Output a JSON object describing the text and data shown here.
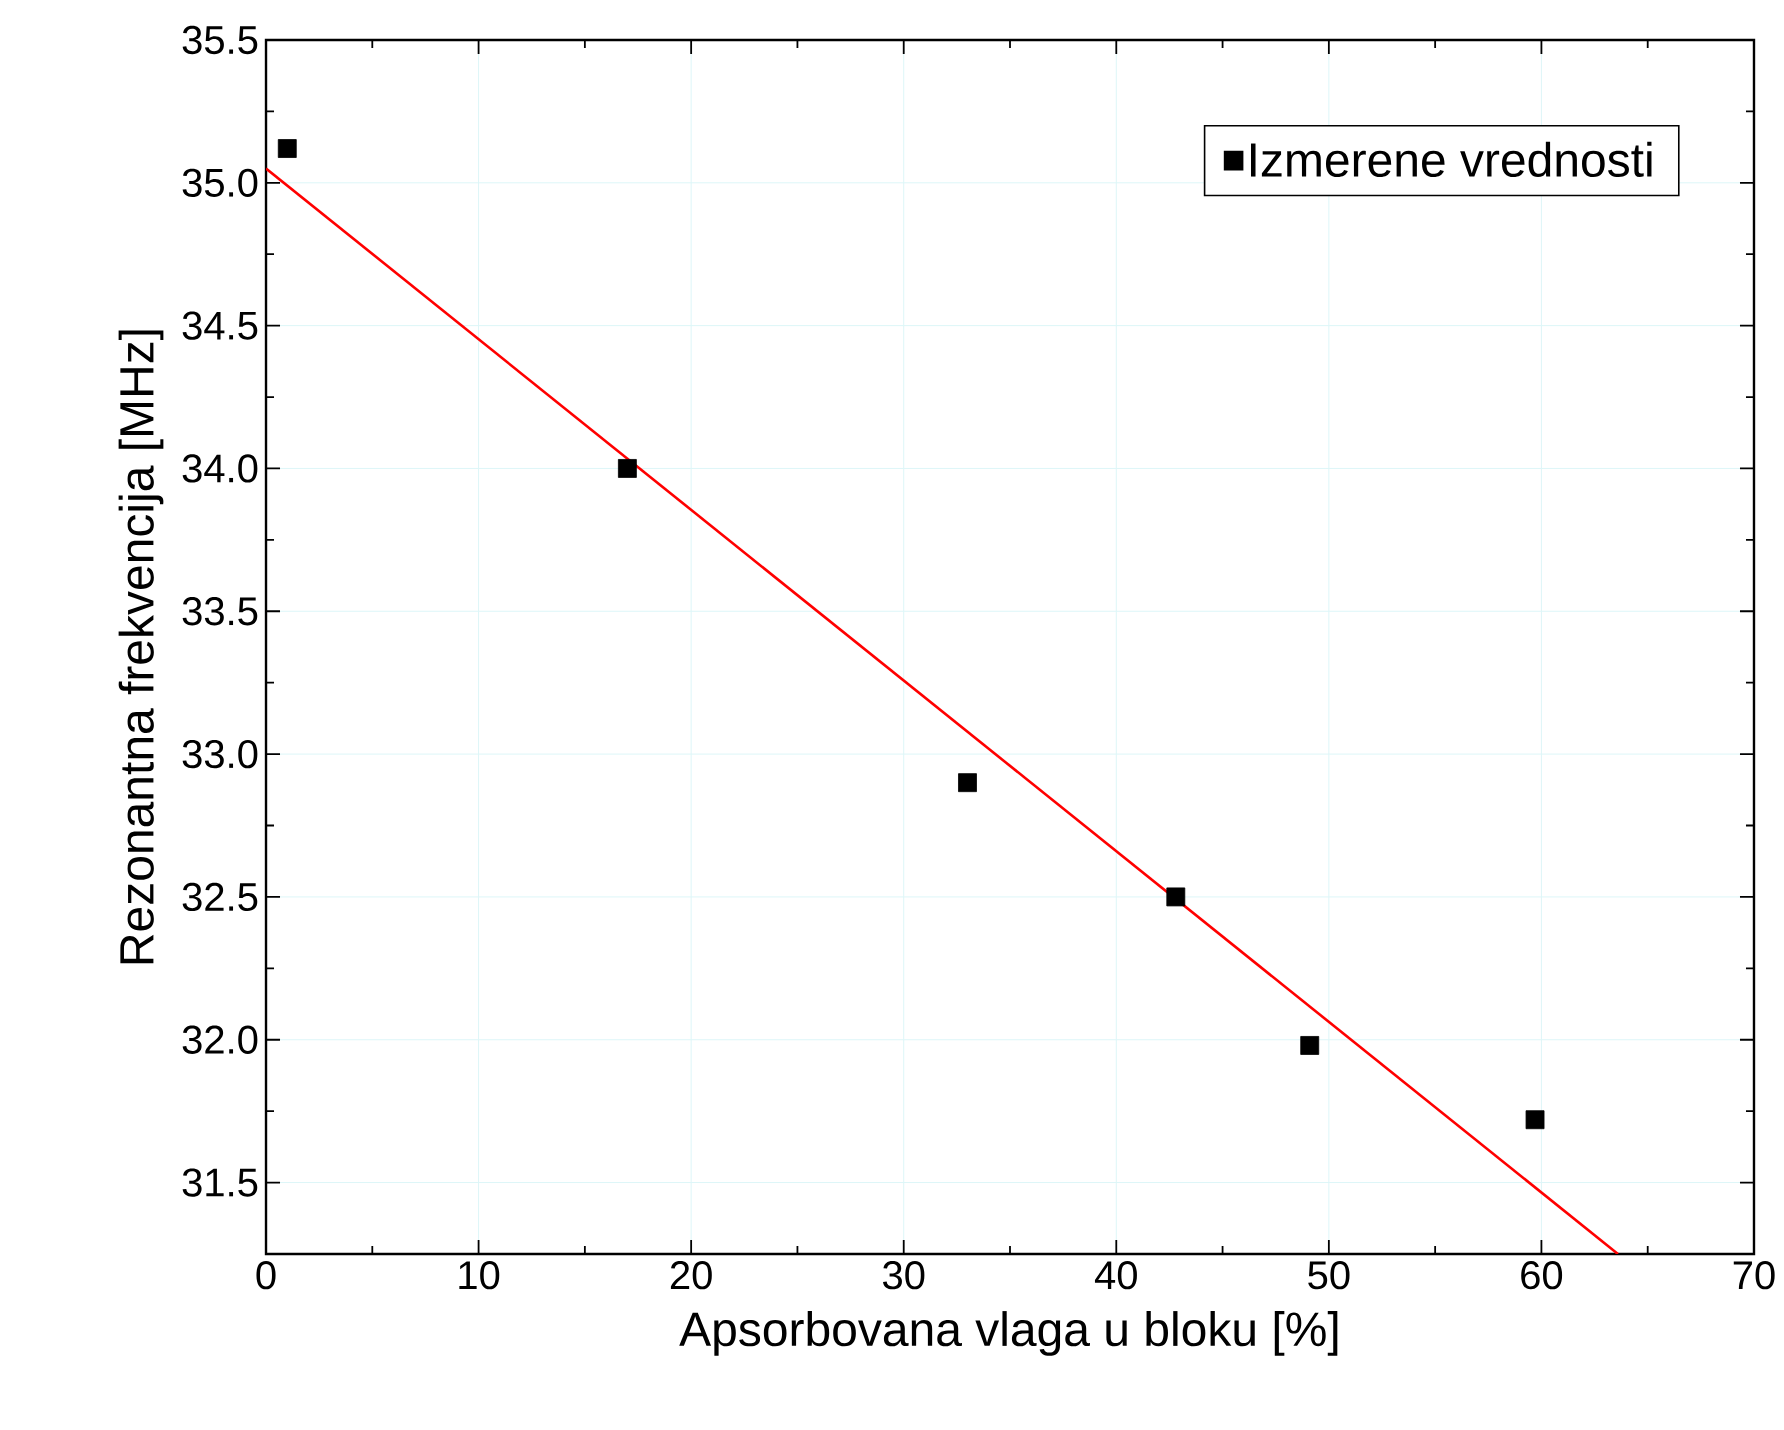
{
  "chart_data": {
    "type": "scatter",
    "xlabel": "Apsorbovana vlaga u bloku [%]",
    "ylabel": "Rezonantna frekvencija [MHz]",
    "xlim": [
      0,
      70
    ],
    "xticks": [
      0,
      10,
      20,
      30,
      40,
      50,
      60,
      70
    ],
    "ylim": [
      31.25,
      35.5
    ],
    "yticks": [
      {
        "value": 31.5,
        "label": "31.5"
      },
      {
        "value": 32,
        "label": "32.0"
      },
      {
        "value": 32.5,
        "label": "32.5"
      },
      {
        "value": 33,
        "label": "33.0"
      },
      {
        "value": 33.5,
        "label": "33.5"
      },
      {
        "value": 34,
        "label": "34.0"
      },
      {
        "value": 34.5,
        "label": "34.5"
      },
      {
        "value": 35,
        "label": "35.0"
      },
      {
        "value": 35.5,
        "label": "35.5"
      }
    ],
    "grid": true,
    "legend": "top right",
    "series": [
      {
        "name": "Izmerene vrednosti",
        "color": "#000000",
        "marker": "square",
        "x": [
          1,
          17,
          33,
          42.8,
          49.1,
          59.7
        ],
        "values": [
          35.12,
          34.0,
          32.9,
          32.5,
          31.98,
          31.72
        ]
      },
      {
        "type": "line",
        "color": "#ff0000",
        "line_style": "solid",
        "x": [
          0,
          63.6
        ],
        "values": [
          35.05,
          31.25
        ]
      }
    ]
  }
}
